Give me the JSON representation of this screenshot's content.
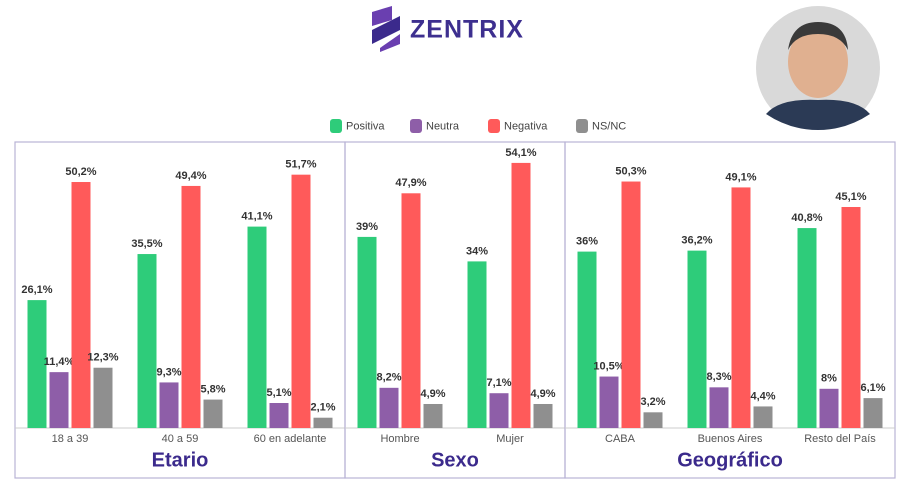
{
  "brand": "ZENTRIX",
  "chart_data": {
    "type": "bar",
    "ylim": [
      0,
      60
    ],
    "groups": [
      {
        "title": "Etario",
        "categories": [
          "18 a 39",
          "40 a 59",
          "60 en adelante"
        ]
      },
      {
        "title": "Sexo",
        "categories": [
          "Hombre",
          "Mujer"
        ]
      },
      {
        "title": "Geográfico",
        "categories": [
          "CABA",
          "Buenos Aires",
          "Resto del País"
        ]
      }
    ],
    "series": [
      {
        "name": "Positiva",
        "color": "#2ecc7a",
        "values": [
          26.1,
          35.5,
          41.1,
          39,
          34,
          36,
          36.2,
          40.8
        ],
        "value_labels": [
          "26,1%",
          "35,5%",
          "41,1%",
          "39%",
          "34%",
          "36%",
          "36,2%",
          "40,8%"
        ]
      },
      {
        "name": "Neutra",
        "color": "#8e5ea8",
        "values": [
          11.4,
          9.3,
          5.1,
          8.2,
          7.1,
          10.5,
          8.3,
          8
        ],
        "value_labels": [
          "11,4%",
          "9,3%",
          "5,1%",
          "8,2%",
          "7,1%",
          "10,5%",
          "8,3%",
          "8%"
        ]
      },
      {
        "name": "Negativa",
        "color": "#ff5a5a",
        "values": [
          50.2,
          49.4,
          51.7,
          47.9,
          54.1,
          50.3,
          49.1,
          45.1
        ],
        "value_labels": [
          "50,2%",
          "49,4%",
          "51,7%",
          "47,9%",
          "54,1%",
          "50,3%",
          "49,1%",
          "45,1%"
        ]
      },
      {
        "name": "NS/NC",
        "color": "#8f8f8f",
        "values": [
          12.3,
          5.8,
          2.1,
          4.9,
          4.9,
          3.2,
          4.4,
          6.1
        ],
        "value_labels": [
          "12,3%",
          "5,8%",
          "2,1%",
          "4,9%",
          "4,9%",
          "3,2%",
          "4,4%",
          "6,1%"
        ]
      }
    ]
  }
}
